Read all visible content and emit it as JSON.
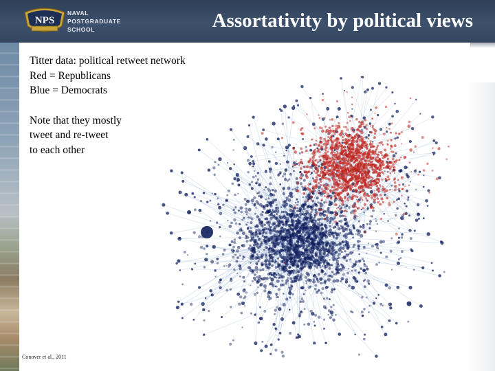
{
  "header": {
    "logo_abbrev": "NPS",
    "logo_lines": [
      "NAVAL",
      "POSTGRADUATE",
      "SCHOOL"
    ],
    "title": "Assortativity by political views"
  },
  "body": {
    "lines_group1": [
      "Titter data:  political retweet network",
      "Red = Republicans",
      "Blue = Democrats"
    ],
    "lines_group2": [
      "Note that they mostly",
      "tweet and re-tweet",
      "to each other"
    ],
    "citation": "Conover et al., 2011"
  },
  "colors": {
    "header_bg": "#33465f",
    "republican": "#c0271f",
    "democrat": "#0e1e5c",
    "edge_blue": "#3f6fb0"
  }
}
